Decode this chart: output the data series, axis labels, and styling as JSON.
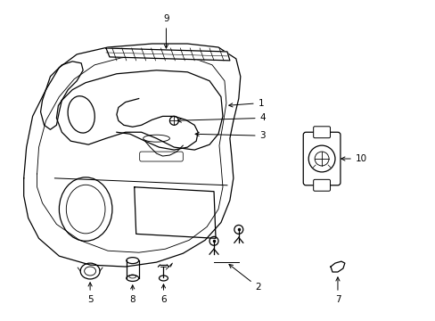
{
  "background_color": "#ffffff",
  "line_color": "#000000",
  "fig_width": 4.89,
  "fig_height": 3.6,
  "dpi": 100,
  "label_fontsize": 7.5,
  "lw": 0.9
}
